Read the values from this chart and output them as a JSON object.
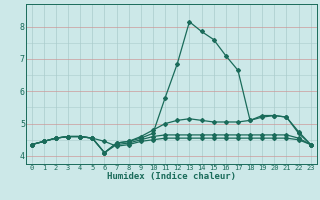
{
  "title": "",
  "xlabel": "Humidex (Indice chaleur)",
  "bg_color": "#cce8e8",
  "grid_color_v": "#aacccc",
  "grid_color_h": "#cc9999",
  "line_color": "#1a6b5a",
  "xlim": [
    -0.5,
    23.5
  ],
  "ylim": [
    3.75,
    8.7
  ],
  "xticks": [
    0,
    1,
    2,
    3,
    4,
    5,
    6,
    7,
    8,
    9,
    10,
    11,
    12,
    13,
    14,
    15,
    16,
    17,
    18,
    19,
    20,
    21,
    22,
    23
  ],
  "yticks": [
    4,
    5,
    6,
    7,
    8
  ],
  "series": [
    [
      4.35,
      4.45,
      4.55,
      4.6,
      4.6,
      4.55,
      4.1,
      4.4,
      4.45,
      4.55,
      4.7,
      5.8,
      6.85,
      8.15,
      7.85,
      7.6,
      7.1,
      6.65,
      5.1,
      5.2,
      5.25,
      5.2,
      4.75,
      4.35
    ],
    [
      4.35,
      4.45,
      4.55,
      4.6,
      4.6,
      4.55,
      4.1,
      4.4,
      4.45,
      4.6,
      4.8,
      5.0,
      5.1,
      5.15,
      5.1,
      5.05,
      5.05,
      5.05,
      5.1,
      5.25,
      5.25,
      5.2,
      4.7,
      4.35
    ],
    [
      4.35,
      4.45,
      4.55,
      4.6,
      4.6,
      4.55,
      4.1,
      4.35,
      4.4,
      4.5,
      4.6,
      4.65,
      4.65,
      4.65,
      4.65,
      4.65,
      4.65,
      4.65,
      4.65,
      4.65,
      4.65,
      4.65,
      4.55,
      4.35
    ],
    [
      4.35,
      4.45,
      4.55,
      4.6,
      4.6,
      4.55,
      4.45,
      4.3,
      4.35,
      4.45,
      4.5,
      4.55,
      4.55,
      4.55,
      4.55,
      4.55,
      4.55,
      4.55,
      4.55,
      4.55,
      4.55,
      4.55,
      4.5,
      4.35
    ]
  ],
  "marker": "D",
  "markersize": 2.0,
  "linewidth": 0.9
}
